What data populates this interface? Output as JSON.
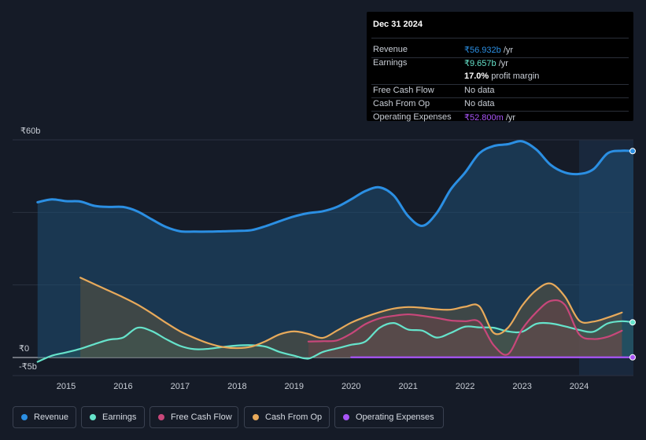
{
  "tooltip": {
    "date": "Dec 31 2024",
    "rows": [
      {
        "label": "Revenue",
        "value": "₹56.932b",
        "unit": " /yr",
        "color": "#2b8fe3"
      },
      {
        "label": "Earnings",
        "value": "₹9.657b",
        "unit": " /yr",
        "color": "#66e3cb"
      },
      {
        "label": "",
        "value": "17.0%",
        "unit": " profit margin",
        "color": "#ffffff"
      },
      {
        "label": "Free Cash Flow",
        "value": "No data",
        "unit": "",
        "color": "#6c7380"
      },
      {
        "label": "Cash From Op",
        "value": "No data",
        "unit": "",
        "color": "#6c7380"
      },
      {
        "label": "Operating Expenses",
        "value": "₹52.800m",
        "unit": " /yr",
        "color": "#a855f7"
      }
    ]
  },
  "legend": [
    {
      "label": "Revenue",
      "color": "#2b8fe3"
    },
    {
      "label": "Earnings",
      "color": "#66e3cb"
    },
    {
      "label": "Free Cash Flow",
      "color": "#c8477a"
    },
    {
      "label": "Cash From Op",
      "color": "#e8aa5b"
    },
    {
      "label": "Operating Expenses",
      "color": "#a855f7"
    }
  ],
  "chart_data": {
    "type": "line",
    "title": "",
    "ylabel": "",
    "xlabel": "",
    "ylim": [
      -5,
      60
    ],
    "y_tick_labels": [
      "₹60b",
      "₹0",
      "-₹5b"
    ],
    "x_tick_labels": [
      "2015",
      "2016",
      "2017",
      "2018",
      "2019",
      "2020",
      "2021",
      "2022",
      "2023",
      "2024"
    ],
    "highlight_from": 2024.0,
    "series": [
      {
        "name": "Revenue",
        "color": "#2b8fe3",
        "x": [
          2014.5,
          2014.75,
          2015.0,
          2015.25,
          2015.5,
          2015.75,
          2016.0,
          2016.25,
          2016.5,
          2016.75,
          2017.0,
          2017.25,
          2017.5,
          2017.75,
          2018.0,
          2018.25,
          2018.5,
          2018.75,
          2019.0,
          2019.25,
          2019.5,
          2019.75,
          2020.0,
          2020.25,
          2020.5,
          2020.75,
          2021.0,
          2021.25,
          2021.5,
          2021.75,
          2022.0,
          2022.25,
          2022.5,
          2022.75,
          2023.0,
          2023.25,
          2023.5,
          2023.75,
          2024.0,
          2024.25,
          2024.5,
          2024.75,
          2025.0
        ],
        "y": [
          42.8,
          43.6,
          43.1,
          43.0,
          41.8,
          41.5,
          41.5,
          40.3,
          38.1,
          36.0,
          34.8,
          34.7,
          34.7,
          34.8,
          34.9,
          35.1,
          36.2,
          37.6,
          38.9,
          39.8,
          40.3,
          41.5,
          43.6,
          45.9,
          46.9,
          44.6,
          39.0,
          36.3,
          39.8,
          46.4,
          51.0,
          56.3,
          58.3,
          58.8,
          59.6,
          57.3,
          53.1,
          51.0,
          50.6,
          51.9,
          56.3,
          57.0,
          56.9
        ]
      },
      {
        "name": "Earnings",
        "color": "#66e3cb",
        "x": [
          2014.5,
          2014.75,
          2015.0,
          2015.25,
          2015.5,
          2015.75,
          2016.0,
          2016.25,
          2016.5,
          2016.75,
          2017.0,
          2017.25,
          2017.5,
          2017.75,
          2018.0,
          2018.25,
          2018.5,
          2018.75,
          2019.0,
          2019.25,
          2019.5,
          2019.75,
          2020.0,
          2020.25,
          2020.5,
          2020.75,
          2021.0,
          2021.25,
          2021.5,
          2021.75,
          2022.0,
          2022.25,
          2022.5,
          2022.75,
          2023.0,
          2023.25,
          2023.5,
          2023.75,
          2024.0,
          2024.25,
          2024.5,
          2024.75,
          2025.0
        ],
        "y": [
          -1.2,
          0.5,
          1.4,
          2.4,
          3.7,
          4.9,
          5.5,
          8.2,
          7.3,
          5.1,
          3.2,
          2.3,
          2.4,
          2.9,
          3.3,
          3.4,
          3.0,
          1.5,
          0.5,
          -0.3,
          1.5,
          2.5,
          3.5,
          4.4,
          8.2,
          9.5,
          7.7,
          7.4,
          5.5,
          6.8,
          8.5,
          8.3,
          8.2,
          7.2,
          7.1,
          9.3,
          9.4,
          8.6,
          7.6,
          7.1,
          9.4,
          10.0,
          9.7
        ]
      },
      {
        "name": "Free Cash Flow",
        "color": "#c8477a",
        "x": [
          2019.25,
          2019.5,
          2019.75,
          2020.0,
          2020.25,
          2020.5,
          2020.75,
          2021.0,
          2021.25,
          2021.5,
          2021.75,
          2022.0,
          2022.25,
          2022.5,
          2022.75,
          2023.0,
          2023.25,
          2023.5,
          2023.75,
          2024.0,
          2024.25,
          2024.5,
          2024.75
        ],
        "y": [
          4.4,
          4.5,
          4.7,
          6.6,
          9.2,
          10.8,
          11.5,
          11.9,
          11.5,
          10.9,
          10.2,
          10.0,
          9.8,
          3.4,
          0.9,
          7.8,
          12.5,
          15.6,
          14.5,
          6.4,
          5.1,
          5.7,
          7.4
        ]
      },
      {
        "name": "Cash From Op",
        "color": "#e8aa5b",
        "x": [
          2015.25,
          2015.5,
          2015.75,
          2016.0,
          2016.25,
          2016.5,
          2016.75,
          2017.0,
          2017.25,
          2017.5,
          2017.75,
          2018.0,
          2018.25,
          2018.5,
          2018.75,
          2019.0,
          2019.25,
          2019.5,
          2019.75,
          2020.0,
          2020.25,
          2020.5,
          2020.75,
          2021.0,
          2021.25,
          2021.5,
          2021.75,
          2022.0,
          2022.25,
          2022.5,
          2022.75,
          2023.0,
          2023.25,
          2023.5,
          2023.75,
          2024.0,
          2024.25,
          2024.5,
          2024.75
        ],
        "y": [
          22.0,
          20.2,
          18.4,
          16.6,
          14.6,
          12.2,
          9.6,
          7.2,
          5.4,
          3.9,
          2.9,
          2.6,
          3.0,
          4.5,
          6.4,
          7.2,
          6.5,
          5.4,
          7.4,
          9.6,
          11.2,
          12.5,
          13.5,
          13.9,
          13.7,
          13.3,
          13.2,
          14.0,
          14.1,
          6.8,
          8.2,
          14.3,
          18.6,
          20.4,
          16.8,
          10.2,
          9.9,
          11.0,
          12.4
        ]
      },
      {
        "name": "Operating Expenses",
        "color": "#a855f7",
        "x": [
          2020.0,
          2020.5,
          2021.0,
          2021.5,
          2022.0,
          2022.5,
          2023.0,
          2023.5,
          2024.0,
          2024.5,
          2025.0
        ],
        "y": [
          0.05,
          0.05,
          0.05,
          0.05,
          0.05,
          0.05,
          0.05,
          0.05,
          0.05,
          0.05,
          0.05
        ]
      }
    ]
  }
}
